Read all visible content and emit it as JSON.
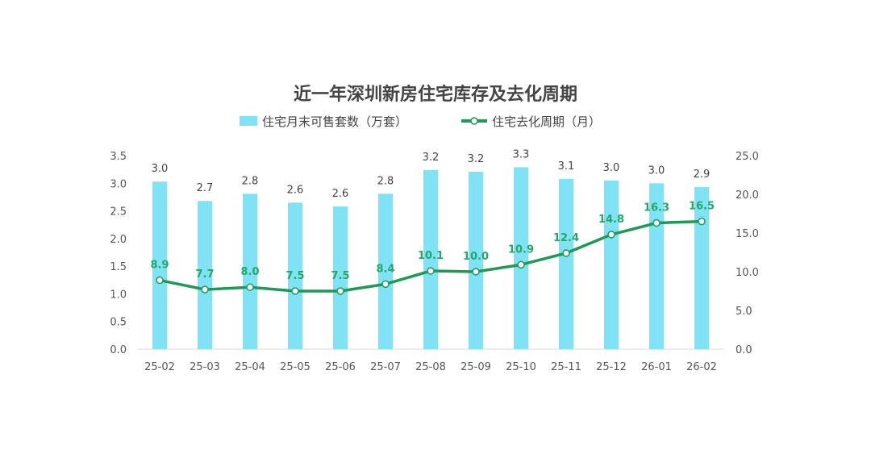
{
  "chart_data": {
    "type": "bar+line",
    "title": "近一年深圳新房住宅库存及去化周期",
    "categories": [
      "25-02",
      "25-03",
      "25-04",
      "25-05",
      "25-06",
      "25-07",
      "25-08",
      "25-09",
      "25-10",
      "25-11",
      "25-12",
      "26-01",
      "26-02"
    ],
    "series": [
      {
        "name": "住宅月末可售套数（万套）",
        "type": "bar",
        "axis": "left",
        "color": "#7fe3f5",
        "values": [
          3.03,
          2.68,
          2.81,
          2.65,
          2.58,
          2.81,
          3.24,
          3.21,
          3.29,
          3.08,
          3.05,
          3.0,
          2.93
        ],
        "labels": [
          "3.0",
          "2.7",
          "2.8",
          "2.6",
          "2.6",
          "2.8",
          "3.2",
          "3.2",
          "3.3",
          "3.1",
          "3.0",
          "3.0",
          "2.9"
        ]
      },
      {
        "name": "住宅去化周期（月）",
        "type": "line",
        "axis": "right",
        "color": "#1e9a57",
        "values": [
          8.9,
          7.7,
          8.0,
          7.5,
          7.5,
          8.4,
          10.1,
          10.0,
          10.9,
          12.4,
          14.8,
          16.3,
          16.5
        ],
        "labels": [
          "8.9",
          "7.7",
          "8.0",
          "7.5",
          "7.5",
          "8.4",
          "10.1",
          "10.0",
          "10.9",
          "12.4",
          "14.8",
          "16.3",
          "16.5"
        ]
      }
    ],
    "y_left": {
      "range": [
        0,
        3.5
      ],
      "ticks": [
        "0.0",
        "0.5",
        "1.0",
        "1.5",
        "2.0",
        "2.5",
        "3.0",
        "3.5"
      ]
    },
    "y_right": {
      "range": [
        0,
        25
      ],
      "ticks": [
        "0.0",
        "5.0",
        "10.0",
        "15.0",
        "20.0",
        "25.0"
      ]
    },
    "legend": "top",
    "grid": false
  }
}
